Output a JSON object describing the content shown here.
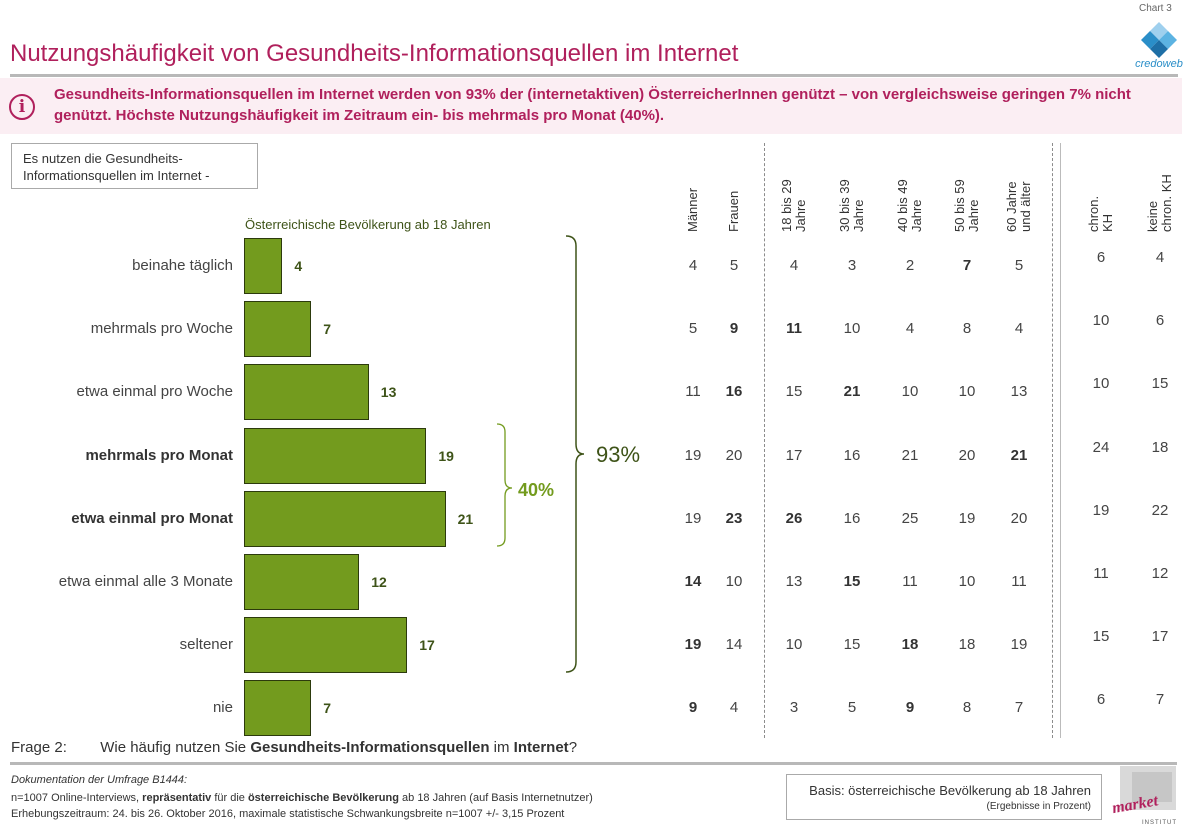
{
  "header": {
    "chart_label": "Chart 3",
    "title": "Nutzungshäufigkeit von Gesundheits-Informationsquellen im Internet",
    "logo_text": "credoweb"
  },
  "banner": {
    "icon": "info-icon",
    "text": "Gesundheits-Informationsquellen im Internet werden von 93% der (internetaktiven) ÖsterreicherInnen genützt – von vergleichsweise geringen 7% nicht genützt. Höchste Nutzungshäufigkeit im Zeitraum ein- bis mehrmals pro Monat (40%)."
  },
  "question_box": {
    "text": "Es nutzen die Gesundheits-Informationsquellen im Internet -"
  },
  "chart_data": {
    "type": "bar",
    "orientation": "horizontal",
    "series_label": "Österreichische Bevölkerung ab 18 Jahren",
    "categories": [
      "beinahe täglich",
      "mehrmals pro Woche",
      "etwa einmal pro Woche",
      "mehrmals pro Monat",
      "etwa einmal pro Monat",
      "etwa einmal alle 3 Monate",
      "seltener",
      "nie"
    ],
    "bold_categories": [
      "mehrmals pro Monat",
      "etwa einmal pro Monat"
    ],
    "values": [
      4,
      7,
      13,
      19,
      21,
      12,
      17,
      7
    ],
    "brackets": [
      {
        "label": "93%",
        "from": "beinahe täglich",
        "to": "seltener"
      },
      {
        "label": "40%",
        "from": "mehrmals pro Monat",
        "to": "etwa einmal pro Monat"
      }
    ],
    "bar_color": "#739b1e",
    "table": {
      "columns": [
        "Männer",
        "Frauen",
        "18 bis 29 Jahre",
        "30 bis 39 Jahre",
        "40 bis 49 Jahre",
        "50 bis 59 Jahre",
        "60 Jahre und älter",
        "chron. KH",
        "keine chron. KH"
      ],
      "rows": [
        [
          4,
          5,
          4,
          3,
          2,
          7,
          5,
          6,
          4
        ],
        [
          5,
          9,
          11,
          10,
          4,
          8,
          4,
          10,
          6
        ],
        [
          11,
          16,
          15,
          21,
          10,
          10,
          13,
          10,
          15
        ],
        [
          19,
          20,
          17,
          16,
          21,
          20,
          21,
          24,
          18
        ],
        [
          19,
          23,
          26,
          16,
          25,
          19,
          20,
          19,
          22
        ],
        [
          14,
          10,
          13,
          15,
          11,
          10,
          11,
          11,
          12
        ],
        [
          19,
          14,
          10,
          15,
          18,
          18,
          19,
          15,
          17
        ],
        [
          9,
          4,
          3,
          5,
          9,
          8,
          7,
          6,
          7
        ]
      ],
      "bold": [
        [
          0,
          5
        ],
        [
          1,
          1
        ],
        [
          1,
          2
        ],
        [
          2,
          1
        ],
        [
          2,
          3
        ],
        [
          3,
          6
        ],
        [
          4,
          1
        ],
        [
          4,
          2
        ],
        [
          5,
          0
        ],
        [
          5,
          3
        ],
        [
          6,
          0
        ],
        [
          6,
          4
        ],
        [
          7,
          0
        ],
        [
          7,
          4
        ]
      ]
    }
  },
  "footer": {
    "question_prefix": "Frage 2:",
    "question_text_1": "Wie häufig nutzen Sie ",
    "question_bold_1": "Gesundheits-Informationsquellen",
    "question_text_2": " im ",
    "question_bold_2": "Internet",
    "question_text_3": "?",
    "doc_title": "Dokumentation der Umfrage B1444:",
    "doc_line1_a": "n=1007 Online-Interviews, ",
    "doc_line1_b": "repräsentativ",
    "doc_line1_c": " für die ",
    "doc_line1_d": "österreichische Bevölkerung",
    "doc_line1_e": " ab 18 Jahren (auf Basis Internetnutzer)",
    "doc_line2": "Erhebungszeitraum: 24. bis 26. Oktober 2016, maximale statistische Schwankungsbreite n=1007 +/- 3,15 Prozent",
    "basis_text": "Basis: österreichische Bevölkerung ab 18 Jahren",
    "basis_note": "(Ergebnisse in Prozent)",
    "market_logo_text": "market",
    "market_logo_sub": "INSTITUT"
  }
}
